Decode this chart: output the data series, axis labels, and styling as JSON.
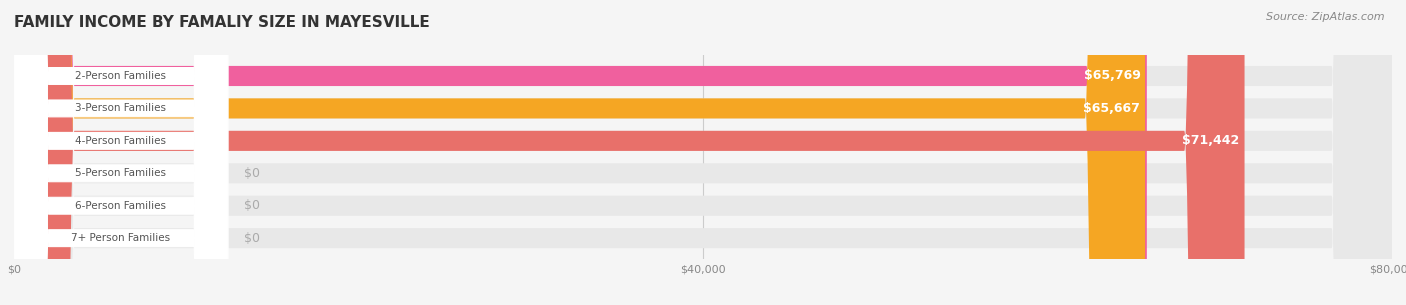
{
  "title": "FAMILY INCOME BY FAMALIY SIZE IN MAYESVILLE",
  "source": "Source: ZipAtlas.com",
  "categories": [
    "2-Person Families",
    "3-Person Families",
    "4-Person Families",
    "5-Person Families",
    "6-Person Families",
    "7+ Person Families"
  ],
  "values": [
    65769,
    65667,
    71442,
    0,
    0,
    0
  ],
  "labels": [
    "$65,769",
    "$65,667",
    "$71,442",
    "$0",
    "$0",
    "$0"
  ],
  "bar_colors": [
    "#f0609e",
    "#f5a623",
    "#e8706a",
    "#aec6e8",
    "#c3aee8",
    "#8dd4c8"
  ],
  "xmax": 80000,
  "xticks": [
    0,
    40000,
    80000
  ],
  "xticklabels": [
    "$0",
    "$40,000",
    "$80,000"
  ],
  "background_color": "#f5f5f5",
  "bar_background": "#e8e8e8",
  "title_fontsize": 11,
  "source_fontsize": 8,
  "label_fontsize": 9,
  "cat_fontsize": 7.5
}
